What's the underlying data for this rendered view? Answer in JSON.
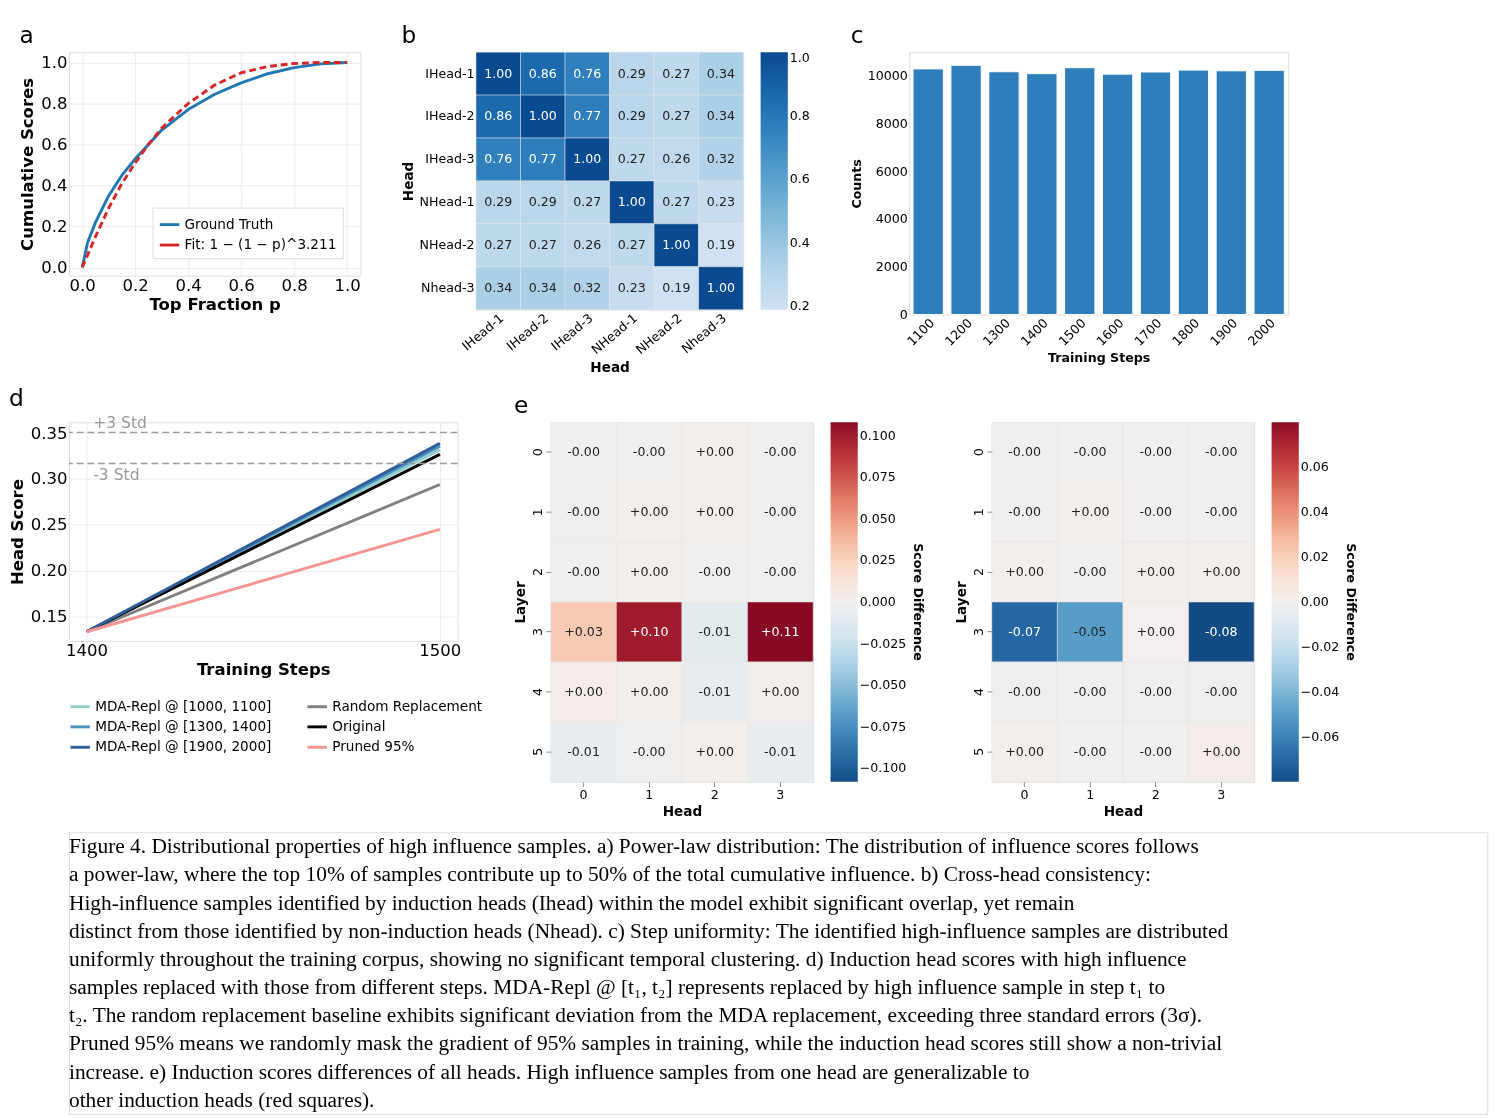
{
  "chart_data": [
    {
      "type": "line",
      "title": "a",
      "xlabel": "Top Fraction p",
      "ylabel": "Cumulative Scores",
      "xlim": [
        -0.05,
        1.05
      ],
      "ylim": [
        -0.04,
        1.05
      ],
      "xticks": [
        {
          "value": 0,
          "label": "0.0"
        },
        0.2,
        0.4,
        0.6,
        0.8,
        {
          "value": 1,
          "label": "1.0"
        }
      ],
      "yticks": [
        {
          "value": 0,
          "label": "0.0"
        },
        0.2,
        0.4,
        0.6,
        0.8,
        {
          "value": 1,
          "label": "1.0"
        }
      ],
      "grid": true,
      "legend": "bottom right",
      "series": [
        {
          "name": "Ground Truth",
          "color": "#1f77b4",
          "line_style": "solid",
          "x": [
            0,
            0.02,
            0.05,
            0.1,
            0.15,
            0.2,
            0.25,
            0.3,
            0.4,
            0.5,
            0.6,
            0.7,
            0.8,
            0.9,
            1.0
          ],
          "values": [
            0,
            0.12,
            0.22,
            0.35,
            0.45,
            0.53,
            0.6,
            0.67,
            0.77,
            0.845,
            0.9,
            0.945,
            0.975,
            0.993,
            1.0
          ]
        },
        {
          "name": "Fit: 1 − (1 − p)^3.211",
          "color": "#d62728",
          "line_style": "dashed",
          "x": [
            0,
            0.05,
            0.1,
            0.15,
            0.2,
            0.25,
            0.3,
            0.4,
            0.5,
            0.6,
            0.7,
            0.8,
            0.9,
            1.0
          ],
          "values": [
            0,
            0.15,
            0.29,
            0.41,
            0.51,
            0.6,
            0.68,
            0.8,
            0.89,
            0.95,
            0.98,
            0.995,
            1.0,
            1.0
          ]
        }
      ]
    },
    {
      "type": "heatmap",
      "title": "b",
      "xlabel": "Head",
      "ylabel": "Head",
      "clim": [
        0.19,
        1.0
      ],
      "cticks": [
        0.2,
        0.4,
        0.6,
        0.8,
        {
          "value": 1,
          "label": "1.0"
        }
      ],
      "cell_labels": [
        [
          "1.00",
          "0.86",
          "0.76",
          "0.29",
          "0.27",
          "0.34"
        ],
        [
          "0.86",
          "1.00",
          "0.77",
          "0.29",
          "0.27",
          "0.34"
        ],
        [
          "0.76",
          "0.77",
          "1.00",
          "0.27",
          "0.26",
          "0.32"
        ],
        [
          "0.29",
          "0.29",
          "0.27",
          "1.00",
          "0.27",
          "0.23"
        ],
        [
          "0.27",
          "0.27",
          "0.26",
          "0.27",
          "1.00",
          "0.19"
        ],
        [
          "0.34",
          "0.34",
          "0.32",
          "0.23",
          "0.19",
          "1.00"
        ]
      ],
      "categories": [
        "IHead-1",
        "IHead-2",
        "IHead-3",
        "NHead-1",
        "NHead-2",
        "Nhead-3"
      ],
      "y_categories": [
        "IHead-1",
        "IHead-2",
        "IHead-3",
        "NHead-1",
        "NHead-2",
        "Nhead-3"
      ],
      "cells": [
        [
          1.0,
          0.86,
          0.76,
          0.29,
          0.27,
          0.34
        ],
        [
          0.86,
          1.0,
          0.77,
          0.29,
          0.27,
          0.34
        ],
        [
          0.76,
          0.77,
          1.0,
          0.27,
          0.26,
          0.32
        ],
        [
          0.29,
          0.29,
          0.27,
          1.0,
          0.27,
          0.23
        ],
        [
          0.27,
          0.27,
          0.26,
          0.27,
          1.0,
          0.19
        ],
        [
          0.34,
          0.34,
          0.32,
          0.23,
          0.19,
          1.0
        ]
      ]
    },
    {
      "type": "bar",
      "title": "c",
      "xlabel": "Training Steps",
      "ylabel": "Counts",
      "ylim": [
        0,
        11000
      ],
      "yticks": [
        0,
        2000,
        4000,
        6000,
        8000,
        10000
      ],
      "grid": false,
      "categories": [
        "1100",
        "1200",
        "1300",
        "1400",
        "1500",
        "1600",
        "1700",
        "1800",
        "1900",
        "2000"
      ],
      "series": [
        {
          "color": "#2e7ebc",
          "values": [
            10300,
            10450,
            10180,
            10100,
            10350,
            10080,
            10170,
            10250,
            10220,
            10240
          ]
        }
      ]
    },
    {
      "type": "line",
      "title": "d",
      "xlabel": "Training Steps",
      "ylabel": "Head Score",
      "xlim": [
        1395,
        1505
      ],
      "ylim": [
        0.123,
        0.362
      ],
      "xticks": [
        1400,
        1500
      ],
      "yticks": [
        0.15,
        {
          "value": 0.2,
          "label": "0.20"
        },
        0.25,
        {
          "value": 0.3,
          "label": "0.30"
        },
        0.35
      ],
      "grid": true,
      "legend": "bottom",
      "x": [
        1400,
        1500
      ],
      "series": [
        {
          "name": "MDA-Repl @ [1000, 1100]",
          "color": "#8ecfc9",
          "values": [
            0.133,
            0.332
          ]
        },
        {
          "name": "Random Replacement",
          "color": "#808080",
          "values": [
            0.133,
            0.294
          ]
        },
        {
          "name": "MDA-Repl @ [1300, 1400]",
          "color": "#4a90c4",
          "values": [
            0.133,
            0.336
          ]
        },
        {
          "name": "Original",
          "color": "#000000",
          "values": [
            0.133,
            0.327
          ]
        },
        {
          "name": "MDA-Repl @ [1900, 2000]",
          "color": "#2f5f9a",
          "values": [
            0.133,
            0.339
          ]
        },
        {
          "name": "Pruned 95%",
          "color": "#f79595",
          "values": [
            0.133,
            0.245
          ]
        }
      ],
      "ref_lines": [
        {
          "axis": "y",
          "value": 0.351,
          "label": "+3 Std",
          "color": "#999999",
          "line_style": "dashed"
        },
        {
          "axis": "y",
          "value": 0.317,
          "label": "-3 Std",
          "color": "#999999",
          "line_style": "dashed"
        }
      ]
    },
    {
      "type": "heatmap",
      "title": "e",
      "xlabel": "Head",
      "ylabel": "Layer",
      "clabel": "Score Difference",
      "clim": [
        -0.108,
        0.108
      ],
      "cticks": [
        {
          "value": -0.1,
          "label": "−0.100"
        },
        {
          "value": -0.075,
          "label": "−0.075"
        },
        {
          "value": -0.05,
          "label": "−0.050"
        },
        {
          "value": -0.025,
          "label": "−0.025"
        },
        {
          "value": 0,
          "label": "0.000"
        },
        {
          "value": 0.025,
          "label": "0.025"
        },
        {
          "value": 0.05,
          "label": "0.050"
        },
        {
          "value": 0.075,
          "label": "0.075"
        },
        {
          "value": 0.1,
          "label": "0.100"
        }
      ],
      "categories": [
        "0",
        "1",
        "2",
        "3"
      ],
      "y_categories": [
        "0",
        "1",
        "2",
        "3",
        "4",
        "5"
      ],
      "cells": [
        [
          -0.001,
          -0.001,
          0.001,
          -0.001
        ],
        [
          -0.002,
          0.001,
          0.001,
          -0.001
        ],
        [
          -0.001,
          0.001,
          -0.001,
          -0.001
        ],
        [
          0.03,
          0.1,
          -0.01,
          0.11
        ],
        [
          0.003,
          0.002,
          -0.006,
          0.002
        ],
        [
          -0.006,
          -0.002,
          0.001,
          -0.006
        ]
      ],
      "cell_labels": [
        [
          "-0.00",
          "-0.00",
          "+0.00",
          "-0.00"
        ],
        [
          "-0.00",
          "+0.00",
          "+0.00",
          "-0.00"
        ],
        [
          "-0.00",
          "+0.00",
          "-0.00",
          "-0.00"
        ],
        [
          "+0.03",
          "+0.10",
          "-0.01",
          "+0.11"
        ],
        [
          "+0.00",
          "+0.00",
          "-0.01",
          "+0.00"
        ],
        [
          "-0.01",
          "-0.00",
          "+0.00",
          "-0.01"
        ]
      ]
    },
    {
      "type": "heatmap",
      "xlabel": "Head",
      "ylabel": "Layer",
      "clabel": "Score Difference",
      "clim": [
        -0.08,
        0.08
      ],
      "cticks": [
        {
          "value": -0.06,
          "label": "−0.06"
        },
        {
          "value": -0.04,
          "label": "−0.04"
        },
        {
          "value": -0.02,
          "label": "−0.02"
        },
        {
          "value": 0,
          "label": "0.00"
        },
        0.02,
        0.04,
        0.06
      ],
      "categories": [
        "0",
        "1",
        "2",
        "3"
      ],
      "y_categories": [
        "0",
        "1",
        "2",
        "3",
        "4",
        "5"
      ],
      "cells": [
        [
          -0.001,
          -0.001,
          -0.001,
          -0.001
        ],
        [
          -0.001,
          0.001,
          -0.001,
          -0.001
        ],
        [
          0.001,
          -0.001,
          0.001,
          0.001
        ],
        [
          -0.07,
          -0.05,
          0.0,
          -0.08
        ],
        [
          -0.002,
          -0.001,
          -0.002,
          -0.002
        ],
        [
          0.001,
          -0.001,
          -0.001,
          0.002
        ]
      ],
      "cell_labels": [
        [
          "-0.00",
          "-0.00",
          "-0.00",
          "-0.00"
        ],
        [
          "-0.00",
          "+0.00",
          "-0.00",
          "-0.00"
        ],
        [
          "+0.00",
          "-0.00",
          "+0.00",
          "+0.00"
        ],
        [
          "-0.07",
          "-0.05",
          "+0.00",
          "-0.08"
        ],
        [
          "-0.00",
          "-0.00",
          "-0.00",
          "-0.00"
        ],
        [
          "+0.00",
          "-0.00",
          "-0.00",
          "+0.00"
        ]
      ]
    },
    {
      "type": "other",
      "annotations": [
        "Figure 4. Distributional properties of high influence samples. a) Power-law distribution: The distribution of influence scores follows",
        "a power-law, where the top 10% of samples contribute up to 50% of the total cumulative influence. b) Cross-head consistency:",
        "High-influence samples identified by induction heads (Ihead) within the model exhibit significant overlap, yet remain",
        "distinct from those identified by non-induction heads (Nhead). c) Step uniformity: The identified high-influence samples are distributed",
        "uniformly throughout the training corpus, showing no significant temporal clustering. d) Induction head scores with high influence",
        "samples replaced with those from different steps. MDA-Repl @ [t₁, t₂] represents replaced by high influence sample in step t₁ to",
        "t₂. The random replacement baseline exhibits significant deviation from the MDA replacement, exceeding three standard errors (3σ).",
        "Pruned 95% means we randomly mask the gradient of 95% samples in training, while the induction head scores still show a non-trivial",
        "increase. e) Induction scores differences of all heads. High influence samples from one head are generalizable to",
        "other induction heads (red squares)."
      ]
    }
  ]
}
